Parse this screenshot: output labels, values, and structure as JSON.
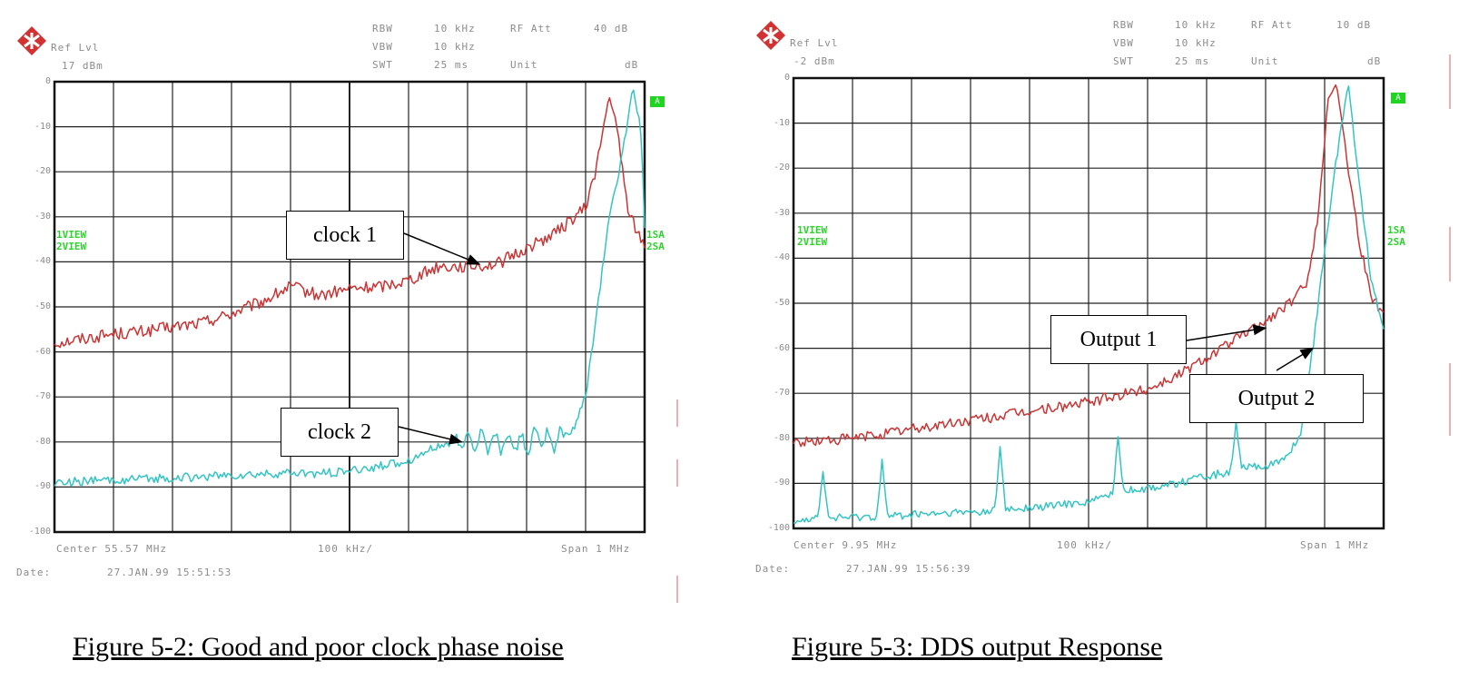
{
  "chart_data": [
    {
      "type": "line",
      "title": "Figure 5-2: Good and poor clock phase noise",
      "header": {
        "ref_lvl_label": "Ref Lvl",
        "ref_lvl_value": "17 dBm",
        "rbw_label": "RBW",
        "rbw_value": "10 kHz",
        "vbw_label": "VBW",
        "vbw_value": "10 kHz",
        "swt_label": "SWT",
        "swt_value": "25 ms",
        "rf_att_label": "RF Att",
        "rf_att_value": "40 dB",
        "unit_label": "Unit",
        "unit_value": "dB"
      },
      "yticks": [
        "0",
        "-10",
        "-20",
        "-30",
        "-40",
        "-50",
        "-60",
        "-70",
        "-80",
        "-90",
        "-100"
      ],
      "ylim": [
        -100,
        0
      ],
      "xlim": [
        0,
        10
      ],
      "x_center_label": "Center 55.57 MHz",
      "x_div_label": "100 kHz/",
      "x_span_label": "Span 1 MHz",
      "date_label": "Date:",
      "date_value": "27.JAN.99  15:51:53",
      "trace_labels": [
        "1VIEW",
        "2VIEW"
      ],
      "right_markers": [
        "1SA",
        "2SA"
      ],
      "corner_marker": "A",
      "series": [
        {
          "name": "clock 1",
          "color": "#cc3333",
          "x": [
            0,
            0.5,
            1,
            1.5,
            2,
            2.5,
            3,
            3.5,
            4,
            4.5,
            5,
            5.5,
            6,
            6.5,
            7,
            7.5,
            8,
            8.5,
            9,
            9.2,
            9.4,
            9.55,
            9.7,
            9.85,
            10
          ],
          "y": [
            -58,
            -57,
            -56,
            -55.5,
            -54.5,
            -53.5,
            -51.5,
            -49,
            -45.5,
            -47.5,
            -46,
            -45.5,
            -44,
            -41,
            -41,
            -40.5,
            -37,
            -33.5,
            -28,
            -18,
            -3,
            -12,
            -27,
            -33,
            -36
          ],
          "noise": 1.4
        },
        {
          "name": "clock 2",
          "color": "#33c4c4",
          "x": [
            0,
            1,
            2,
            3,
            4,
            4.5,
            5,
            5.5,
            6,
            6.5,
            7,
            7.5,
            8,
            8.2,
            8.4,
            8.6,
            8.8,
            9,
            9.2,
            9.4,
            9.6,
            9.8,
            9.95,
            10
          ],
          "y": [
            -89,
            -88.5,
            -88,
            -87.5,
            -87,
            -87,
            -86.5,
            -85.5,
            -84,
            -81,
            -79.5,
            -80,
            -80.5,
            -79,
            -80,
            -79,
            -77,
            -70,
            -50,
            -30,
            -18,
            -1,
            -12,
            -33
          ],
          "noise": 1.0,
          "ripple_from": 6.8,
          "ripple_to": 8.6
        }
      ],
      "annotations": [
        {
          "text": "clock 1",
          "target": [
            7.2,
            -40.5
          ]
        },
        {
          "text": "clock 2",
          "target": [
            6.9,
            -80
          ]
        }
      ]
    },
    {
      "type": "line",
      "title": "Figure 5-3:  DDS output Response",
      "header": {
        "ref_lvl_label": "Ref Lvl",
        "ref_lvl_value": "-2 dBm",
        "rbw_label": "RBW",
        "rbw_value": "10 kHz",
        "vbw_label": "VBW",
        "vbw_value": "10 kHz",
        "swt_label": "SWT",
        "swt_value": "25 ms",
        "rf_att_label": "RF Att",
        "rf_att_value": "10 dB",
        "unit_label": "Unit",
        "unit_value": "dB"
      },
      "yticks": [
        "0",
        "-10",
        "-20",
        "-30",
        "-40",
        "-50",
        "-60",
        "-70",
        "-80",
        "-90",
        "-100"
      ],
      "ylim": [
        -100,
        0
      ],
      "xlim": [
        0,
        10
      ],
      "x_center_label": "Center 9.95 MHz",
      "x_div_label": "100 kHz/",
      "x_span_label": "Span 1 MHz",
      "date_label": "Date:",
      "date_value": "27.JAN.99  15:56:39",
      "trace_labels": [
        "1VIEW",
        "2VIEW"
      ],
      "right_markers": [
        "1SA",
        "2SA"
      ],
      "corner_marker": "A",
      "series": [
        {
          "name": "Output 1",
          "color": "#cc3333",
          "x": [
            0,
            1,
            2,
            3,
            4,
            5,
            6,
            6.5,
            7,
            7.5,
            8,
            8.5,
            8.7,
            8.9,
            9.05,
            9.2,
            9.4,
            9.6,
            9.8,
            10
          ],
          "y": [
            -81,
            -80,
            -78,
            -76,
            -74,
            -72,
            -69,
            -66,
            -62,
            -58,
            -54,
            -49,
            -45,
            -30,
            -5,
            -1,
            -20,
            -37,
            -49,
            -52
          ],
          "noise": 1.2
        },
        {
          "name": "Output 2",
          "color": "#33c4c4",
          "x": [
            0,
            1,
            2,
            3,
            4,
            5,
            5.5,
            6,
            6.5,
            7,
            7.5,
            8,
            8.3,
            8.6,
            8.8,
            9,
            9.2,
            9.4,
            9.6,
            9.8,
            10
          ],
          "y": [
            -98,
            -97.5,
            -97,
            -96.5,
            -95.5,
            -94,
            -92,
            -91,
            -90,
            -88.5,
            -87,
            -86,
            -85,
            -79,
            -60,
            -38,
            -18,
            -1,
            -25,
            -46,
            -55
          ],
          "noise": 0.9,
          "spikes": [
            [
              0.5,
              -87
            ],
            [
              1.5,
              -85
            ],
            [
              3.5,
              -82
            ],
            [
              5.5,
              -79
            ],
            [
              7.5,
              -77
            ]
          ]
        }
      ],
      "annotations": [
        {
          "text": "Output 1",
          "target": [
            8.0,
            -55.5
          ]
        },
        {
          "text": "Output 2",
          "target": [
            8.8,
            -60
          ]
        }
      ]
    }
  ]
}
